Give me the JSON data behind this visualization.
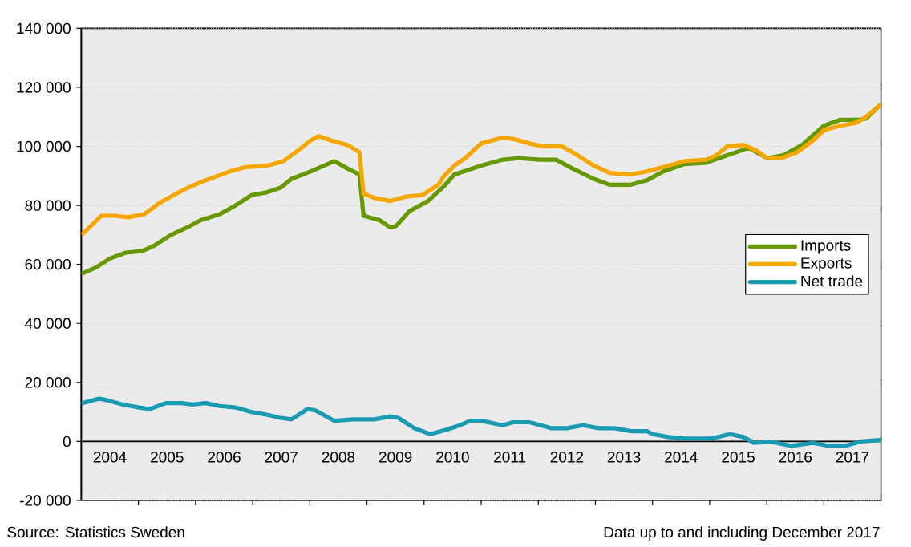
{
  "chart_data": {
    "type": "line",
    "xlim": [
      2004,
      2018
    ],
    "xticks": [
      {
        "value": 2004.5,
        "label": "2004"
      },
      {
        "value": 2005.5,
        "label": "2005"
      },
      {
        "value": 2006.5,
        "label": "2006"
      },
      {
        "value": 2007.5,
        "label": "2007"
      },
      {
        "value": 2008.5,
        "label": "2008"
      },
      {
        "value": 2009.5,
        "label": "2009"
      },
      {
        "value": 2010.5,
        "label": "2010"
      },
      {
        "value": 2011.5,
        "label": "2011"
      },
      {
        "value": 2012.5,
        "label": "2012"
      },
      {
        "value": 2013.5,
        "label": "2013"
      },
      {
        "value": 2014.5,
        "label": "2014"
      },
      {
        "value": 2015.5,
        "label": "2015"
      },
      {
        "value": 2016.5,
        "label": "2016"
      },
      {
        "value": 2017.5,
        "label": "2017"
      },
      {
        "value": 2005,
        "label": null
      },
      {
        "value": 2006,
        "label": null
      },
      {
        "value": 2007,
        "label": null
      },
      {
        "value": 2008,
        "label": null
      },
      {
        "value": 2009,
        "label": null
      },
      {
        "value": 2010,
        "label": null
      },
      {
        "value": 2011,
        "label": null
      },
      {
        "value": 2012,
        "label": null
      },
      {
        "value": 2013,
        "label": null
      },
      {
        "value": 2014,
        "label": null
      },
      {
        "value": 2015,
        "label": null
      },
      {
        "value": 2016,
        "label": null
      },
      {
        "value": 2017,
        "label": null
      }
    ],
    "ylim": [
      -20000,
      140000
    ],
    "yticks": [
      {
        "value": -20000,
        "label": "-20 000"
      },
      0,
      {
        "value": 20000,
        "label": "20 000"
      },
      {
        "value": 40000,
        "label": "40 000"
      },
      {
        "value": 60000,
        "label": "60 000"
      },
      {
        "value": 80000,
        "label": "80 000"
      },
      {
        "value": 100000,
        "label": "100 000"
      },
      {
        "value": 120000,
        "label": "120 000"
      },
      {
        "value": 140000,
        "label": "140 000"
      }
    ],
    "grid": "y",
    "legend": "right",
    "marker": "none",
    "line_style": "solid",
    "annotations": [
      "Source: Statistics Sweden",
      "Data up to and including December 2017"
    ],
    "series": [
      {
        "name": "Imports",
        "color": "#669900",
        "x": [
          2004.03,
          2004.26,
          2004.5,
          2004.78,
          2005.06,
          2005.29,
          2005.57,
          2005.85,
          2006.09,
          2006.42,
          2006.7,
          2006.98,
          2007.26,
          2007.49,
          2007.68,
          2008.01,
          2008.19,
          2008.43,
          2008.66,
          2008.87,
          2008.94,
          2009.22,
          2009.41,
          2009.51,
          2009.74,
          2010.07,
          2010.35,
          2010.53,
          2010.77,
          2011.0,
          2011.38,
          2011.66,
          2012.03,
          2012.31,
          2012.6,
          2012.97,
          2013.25,
          2013.62,
          2013.9,
          2014.19,
          2014.56,
          2014.94,
          2015.31,
          2015.69,
          2016.01,
          2016.29,
          2016.62,
          2017.0,
          2017.28,
          2017.6,
          2017.74,
          2017.98
        ],
        "values": [
          57000,
          59000,
          62000,
          64000,
          64500,
          66500,
          70000,
          72500,
          75000,
          77000,
          80000,
          83500,
          84500,
          86000,
          89000,
          91500,
          93000,
          95000,
          92500,
          90500,
          76500,
          75000,
          72500,
          73000,
          78000,
          81500,
          86500,
          90500,
          92000,
          93500,
          95500,
          96000,
          95500,
          95500,
          92500,
          89000,
          87000,
          87000,
          88500,
          91500,
          94000,
          94500,
          97000,
          99500,
          96000,
          97000,
          100500,
          107000,
          109000,
          109000,
          109500,
          114000
        ]
      },
      {
        "name": "Exports",
        "color": "#f5a700",
        "x": [
          2004.03,
          2004.35,
          2004.59,
          2004.82,
          2005.1,
          2005.38,
          2005.76,
          2006.04,
          2006.32,
          2006.6,
          2006.88,
          2007.26,
          2007.54,
          2007.82,
          2008.01,
          2008.15,
          2008.38,
          2008.66,
          2008.87,
          2008.94,
          2009.13,
          2009.41,
          2009.69,
          2009.97,
          2010.25,
          2010.35,
          2010.53,
          2010.72,
          2011.0,
          2011.38,
          2011.56,
          2011.85,
          2012.08,
          2012.41,
          2012.69,
          2012.97,
          2013.25,
          2013.62,
          2013.9,
          2014.19,
          2014.56,
          2014.94,
          2015.12,
          2015.31,
          2015.59,
          2015.83,
          2016.01,
          2016.25,
          2016.53,
          2016.81,
          2017.0,
          2017.28,
          2017.56,
          2017.74,
          2017.98
        ],
        "values": [
          70500,
          76500,
          76500,
          76000,
          77000,
          81000,
          85000,
          87500,
          89500,
          91500,
          93000,
          93500,
          95000,
          99000,
          102000,
          103500,
          102000,
          100500,
          98000,
          84000,
          82500,
          81500,
          83000,
          83500,
          87000,
          90000,
          93500,
          96000,
          101000,
          103000,
          102500,
          101000,
          100000,
          100000,
          97000,
          93500,
          91000,
          90500,
          91500,
          93000,
          95000,
          95500,
          97000,
          100000,
          100500,
          98500,
          96000,
          96000,
          98000,
          102000,
          105500,
          107000,
          108000,
          110000,
          114000
        ]
      },
      {
        "name": "Net trade",
        "color": "#1a9bb2",
        "x": [
          2004.03,
          2004.31,
          2004.45,
          2004.73,
          2005.01,
          2005.2,
          2005.48,
          2005.76,
          2005.95,
          2006.18,
          2006.42,
          2006.7,
          2006.98,
          2007.26,
          2007.49,
          2007.68,
          2007.96,
          2008.1,
          2008.43,
          2008.76,
          2009.13,
          2009.41,
          2009.55,
          2009.83,
          2010.11,
          2010.39,
          2010.63,
          2010.81,
          2011.0,
          2011.38,
          2011.56,
          2011.85,
          2012.22,
          2012.5,
          2012.78,
          2013.06,
          2013.34,
          2013.62,
          2013.9,
          2014.0,
          2014.28,
          2014.56,
          2015.03,
          2015.36,
          2015.59,
          2015.78,
          2016.06,
          2016.43,
          2016.81,
          2017.09,
          2017.37,
          2017.65,
          2017.98
        ],
        "values": [
          13000,
          14500,
          14000,
          12500,
          11500,
          11000,
          13000,
          13000,
          12500,
          13000,
          12000,
          11500,
          10000,
          9000,
          8000,
          7500,
          11000,
          10500,
          7000,
          7500,
          7500,
          8500,
          8000,
          4500,
          2500,
          4000,
          5500,
          7000,
          7000,
          5500,
          6500,
          6500,
          4500,
          4500,
          5500,
          4500,
          4500,
          3500,
          3500,
          2500,
          1500,
          1000,
          1000,
          2500,
          1500,
          -500,
          0,
          -1500,
          -500,
          -1500,
          -1500,
          0,
          500
        ]
      }
    ]
  }
}
